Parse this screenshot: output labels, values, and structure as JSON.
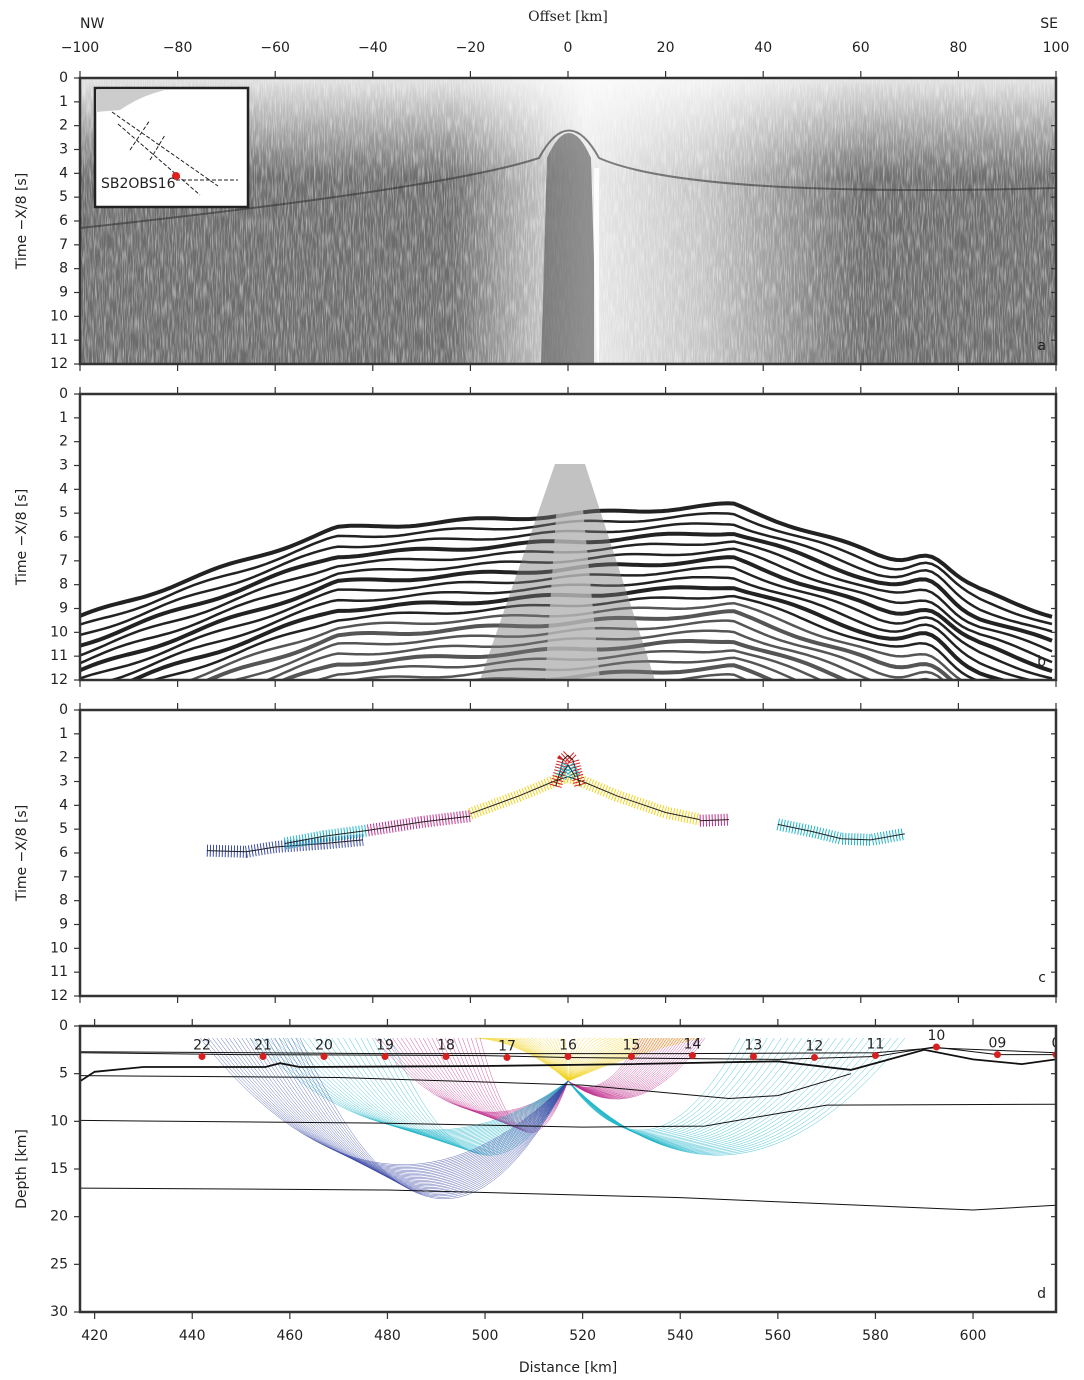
{
  "chart_data": [
    {
      "type": "seismic",
      "style": "raw",
      "panel_label": "a",
      "title_left": "NW",
      "title_right": "SE",
      "xlabel": "Offset [km]",
      "ylabel": "Time −X/8 [s]",
      "inset_label": "SB2OBS16",
      "xlim": [
        -100,
        100
      ],
      "xticks": [
        {
          "value": -100,
          "label": "−100"
        },
        {
          "value": -80,
          "label": "−80"
        },
        {
          "value": -60,
          "label": "−60"
        },
        {
          "value": -40,
          "label": "−40"
        },
        {
          "value": -20,
          "label": "−20"
        },
        0,
        20,
        40,
        60,
        80,
        100
      ],
      "ylim": [
        0,
        12
      ],
      "y_inverted": true,
      "yticks": [
        0,
        1,
        2,
        3,
        4,
        5,
        6,
        7,
        8,
        9,
        10,
        11,
        12
      ]
    },
    {
      "type": "seismic",
      "style": "filtered",
      "panel_label": "b",
      "ylabel": "Time −X/8 [s]",
      "xlim": [
        -100,
        100
      ],
      "xticks": [
        -100,
        -80,
        -60,
        -40,
        -20,
        0,
        20,
        40,
        60,
        80,
        100
      ],
      "ylim": [
        0,
        12
      ],
      "y_inverted": true,
      "yticks": [
        0,
        1,
        2,
        3,
        4,
        5,
        6,
        7,
        8,
        9,
        10,
        11,
        12
      ]
    },
    {
      "type": "line",
      "panel_label": "c",
      "ylabel": "Time −X/8 [s]",
      "xlim": [
        -100,
        100
      ],
      "xticks": [
        -100,
        -80,
        -60,
        -40,
        -20,
        0,
        20,
        40,
        60,
        80,
        100
      ],
      "ylim": [
        0,
        12
      ],
      "y_inverted": true,
      "yticks": [
        0,
        1,
        2,
        3,
        4,
        5,
        6,
        7,
        8,
        9,
        10,
        11,
        12
      ],
      "series": [
        {
          "color": "#3b4aa6",
          "x": [
            -74,
            -66,
            -60,
            -50,
            -42
          ],
          "values": [
            5.9,
            5.95,
            5.75,
            5.6,
            5.45
          ]
        },
        {
          "color": "#1fb5c9",
          "x": [
            -58,
            -50,
            -41
          ],
          "values": [
            5.6,
            5.3,
            5.05
          ]
        },
        {
          "color": "#c0308f",
          "x": [
            -41,
            -30,
            -20
          ],
          "values": [
            5.05,
            4.7,
            4.45
          ]
        },
        {
          "color": "#f1d21b",
          "x": [
            -20,
            -10,
            -3,
            0,
            3,
            10,
            20,
            27
          ],
          "values": [
            4.35,
            3.6,
            3.0,
            2.8,
            3.0,
            3.6,
            4.3,
            4.6
          ]
        },
        {
          "color": "#c0308f",
          "x": [
            27,
            33
          ],
          "values": [
            4.65,
            4.6
          ]
        },
        {
          "color": "#1fb5c9",
          "x": [
            43,
            50,
            56,
            62,
            69
          ],
          "values": [
            4.8,
            5.1,
            5.4,
            5.45,
            5.2
          ]
        },
        {
          "color": "#d62020",
          "x": [
            -2.5,
            -1,
            0,
            1,
            2.5
          ],
          "values": [
            3.2,
            2.1,
            1.9,
            2.1,
            3.2
          ]
        },
        {
          "color": "#1fb5c9",
          "x": [
            -1.5,
            0,
            1.5
          ],
          "values": [
            2.8,
            2.3,
            2.8
          ]
        }
      ]
    },
    {
      "type": "model",
      "panel_label": "d",
      "xlabel": "Distance [km]",
      "ylabel": "Depth [km]",
      "xlim": [
        417,
        617
      ],
      "xticks": [
        420,
        440,
        460,
        480,
        500,
        520,
        540,
        560,
        580,
        600
      ],
      "ylim": [
        0,
        30
      ],
      "y_inverted": true,
      "yticks": [
        0,
        5,
        10,
        15,
        20,
        25,
        30
      ],
      "boundaries": [
        {
          "x": [
            417,
            480,
            540,
            580,
            592,
            617
          ],
          "values": [
            2.7,
            2.9,
            2.9,
            2.8,
            2.3,
            2.8
          ]
        },
        {
          "x": [
            417,
            450,
            500,
            517,
            560,
            580,
            592,
            605,
            617
          ],
          "values": [
            2.8,
            3.0,
            3.1,
            3.3,
            3.5,
            3.2,
            2.2,
            3.0,
            3.0
          ]
        },
        {
          "x": [
            417,
            420,
            430,
            455,
            458,
            462,
            500,
            530,
            560,
            575,
            590,
            600,
            610,
            617
          ],
          "values": [
            5.8,
            4.8,
            4.3,
            4.3,
            3.9,
            4.3,
            4.2,
            4.0,
            3.7,
            4.6,
            2.5,
            3.5,
            4.0,
            3.5
          ]
        },
        {
          "x": [
            417,
            470,
            520,
            550,
            560,
            575
          ],
          "values": [
            5.2,
            5.4,
            6.2,
            7.6,
            7.3,
            5.0
          ]
        },
        {
          "x": [
            417,
            480,
            520,
            545,
            570,
            617
          ],
          "values": [
            9.9,
            10.2,
            10.6,
            10.5,
            8.3,
            8.2
          ]
        },
        {
          "x": [
            417,
            480,
            540,
            600,
            617
          ],
          "values": [
            17.0,
            17.2,
            18.0,
            19.3,
            18.8
          ]
        }
      ],
      "stations": {
        "color": "#d62020",
        "labels": [
          "22",
          "21",
          "20",
          "19",
          "18",
          "17",
          "16",
          "15",
          "14",
          "13",
          "12",
          "11",
          "10",
          "09",
          "0"
        ],
        "x": [
          442,
          454.5,
          467,
          479.5,
          492,
          504.5,
          517,
          530,
          542.5,
          555,
          567.5,
          580,
          592.5,
          605,
          617
        ],
        "values": [
          3.2,
          3.2,
          3.2,
          3.2,
          3.2,
          3.3,
          3.2,
          3.2,
          3.1,
          3.2,
          3.3,
          3.1,
          2.2,
          3.0,
          3.0
        ]
      }
    }
  ]
}
